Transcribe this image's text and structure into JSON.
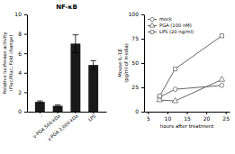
{
  "chart_data": [
    {
      "type": "bar",
      "title": "NF-κB",
      "categories": [
        "-",
        "γ-PGA 500-kDa",
        "γ-PGA 2,000-kDa",
        "LPS"
      ],
      "values": [
        1.0,
        0.6,
        7.0,
        4.8
      ],
      "errors": [
        0.1,
        0.1,
        0.9,
        0.45
      ],
      "color": "#1a1a1a",
      "ylabel": "Relative luciferase activity\n(Fluc/Rluc, Fold change)",
      "ylim": [
        0,
        10
      ],
      "yticks": [
        0,
        2,
        4,
        6,
        8,
        10
      ]
    },
    {
      "type": "line",
      "ylabel": "Mouse IL-1β\n(pg/ml of media)",
      "xlabel": "hours after treatment",
      "x": [
        8,
        12,
        24
      ],
      "xlim": [
        4,
        26
      ],
      "xticks": [
        5,
        10,
        15,
        20,
        25
      ],
      "ylim": [
        0,
        100
      ],
      "yticks": [
        0,
        25,
        50,
        75,
        100
      ],
      "legend": "upper left",
      "series": [
        {
          "name": "mock",
          "color": "#666666",
          "marker": "circle",
          "values": [
            15,
            23,
            27
          ]
        },
        {
          "name": "PGA (100 nM)",
          "color": "#666666",
          "marker": "triangle",
          "values": [
            12,
            11,
            33
          ]
        },
        {
          "name": "LPS (20 ng/ml)",
          "color": "#666666",
          "marker": "square",
          "values": [
            16,
            44,
            78
          ]
        }
      ]
    }
  ]
}
